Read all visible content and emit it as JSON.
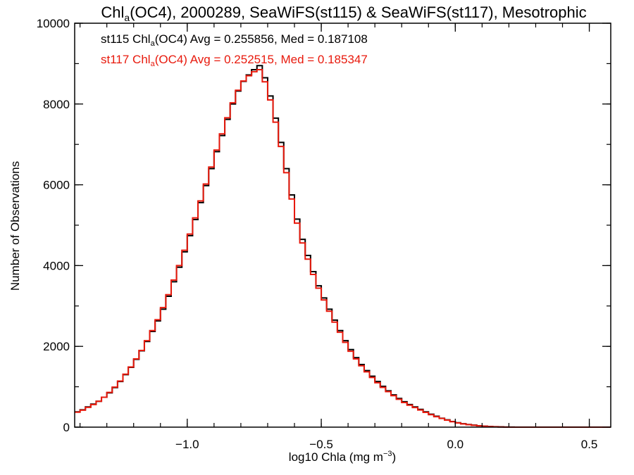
{
  "chart_data": {
    "type": "line",
    "title": {
      "prefix": "Chl",
      "sub": "a",
      "suffix": "(OC4), 2000289, SeaWiFS(st115) & SeaWiFS(st117), Mesotrophic"
    },
    "xlabel": {
      "prefix": "log10 Chla (mg m",
      "sup": "−3",
      "suffix": ")"
    },
    "ylabel": "Number of Observations",
    "xlim": [
      -1.42,
      0.58
    ],
    "ylim": [
      0,
      10000
    ],
    "x_ticks": [
      {
        "value": -1.0,
        "label": "−1.0"
      },
      {
        "value": -0.5,
        "label": "−0.5"
      },
      {
        "value": 0.0,
        "label": "0.0"
      },
      {
        "value": 0.5,
        "label": "0.5"
      }
    ],
    "x_minor_step": 0.1,
    "y_ticks": [
      {
        "value": 0,
        "label": "0"
      },
      {
        "value": 2000,
        "label": "2000"
      },
      {
        "value": 4000,
        "label": "4000"
      },
      {
        "value": 6000,
        "label": "6000"
      },
      {
        "value": 8000,
        "label": "8000"
      },
      {
        "value": 10000,
        "label": "10000"
      }
    ],
    "y_minor_step": 1000,
    "grid": false,
    "step_x0": -1.42,
    "step_dx": 0.02,
    "legend": [
      {
        "series": "st115",
        "color": "#000000",
        "text_prefix": "st115 Chl",
        "text_sub": "a",
        "text_suffix": "(OC4) Avg = 0.255856, Med = 0.187108"
      },
      {
        "series": "st117",
        "color": "#e8190c",
        "text_prefix": "st117 Chl",
        "text_sub": "a",
        "text_suffix": "(OC4) Avg = 0.252515, Med = 0.185347"
      }
    ],
    "series": [
      {
        "name": "st115",
        "color": "#000000",
        "values": [
          380,
          430,
          500,
          570,
          640,
          740,
          850,
          980,
          1130,
          1300,
          1480,
          1680,
          1890,
          2120,
          2370,
          2630,
          2920,
          3240,
          3600,
          3960,
          4340,
          4740,
          5140,
          5560,
          5980,
          6400,
          6820,
          7220,
          7620,
          8000,
          8320,
          8560,
          8720,
          8850,
          8950,
          8650,
          8200,
          7650,
          7050,
          6400,
          5750,
          5150,
          4650,
          4250,
          3850,
          3500,
          3200,
          2920,
          2650,
          2390,
          2140,
          1920,
          1720,
          1550,
          1400,
          1260,
          1130,
          1010,
          900,
          800,
          710,
          630,
          560,
          500,
          440,
          380,
          320,
          270,
          220,
          180,
          140,
          110,
          85,
          65,
          50,
          35,
          25,
          15,
          10,
          6,
          3,
          2,
          1,
          0,
          0,
          0,
          0,
          0,
          0,
          0,
          0,
          0,
          0,
          0,
          0,
          0,
          0,
          0,
          0,
          0
        ]
      },
      {
        "name": "st117",
        "color": "#e8190c",
        "values": [
          370,
          420,
          490,
          560,
          640,
          740,
          860,
          990,
          1140,
          1310,
          1490,
          1690,
          1900,
          2140,
          2390,
          2660,
          2960,
          3280,
          3640,
          4000,
          4380,
          4780,
          5180,
          5600,
          6020,
          6440,
          6860,
          7260,
          7660,
          8030,
          8340,
          8570,
          8700,
          8800,
          8850,
          8550,
          8100,
          7550,
          6950,
          6300,
          5650,
          5050,
          4560,
          4160,
          3780,
          3440,
          3150,
          2870,
          2600,
          2350,
          2100,
          1880,
          1690,
          1520,
          1370,
          1230,
          1100,
          985,
          880,
          780,
          690,
          610,
          545,
          485,
          425,
          365,
          310,
          260,
          215,
          175,
          135,
          105,
          80,
          62,
          46,
          32,
          22,
          14,
          9,
          5,
          3,
          1,
          0,
          0,
          0,
          0,
          0,
          0,
          0,
          0,
          0,
          0,
          0,
          0,
          0,
          0,
          0,
          0,
          0,
          0
        ]
      }
    ]
  }
}
